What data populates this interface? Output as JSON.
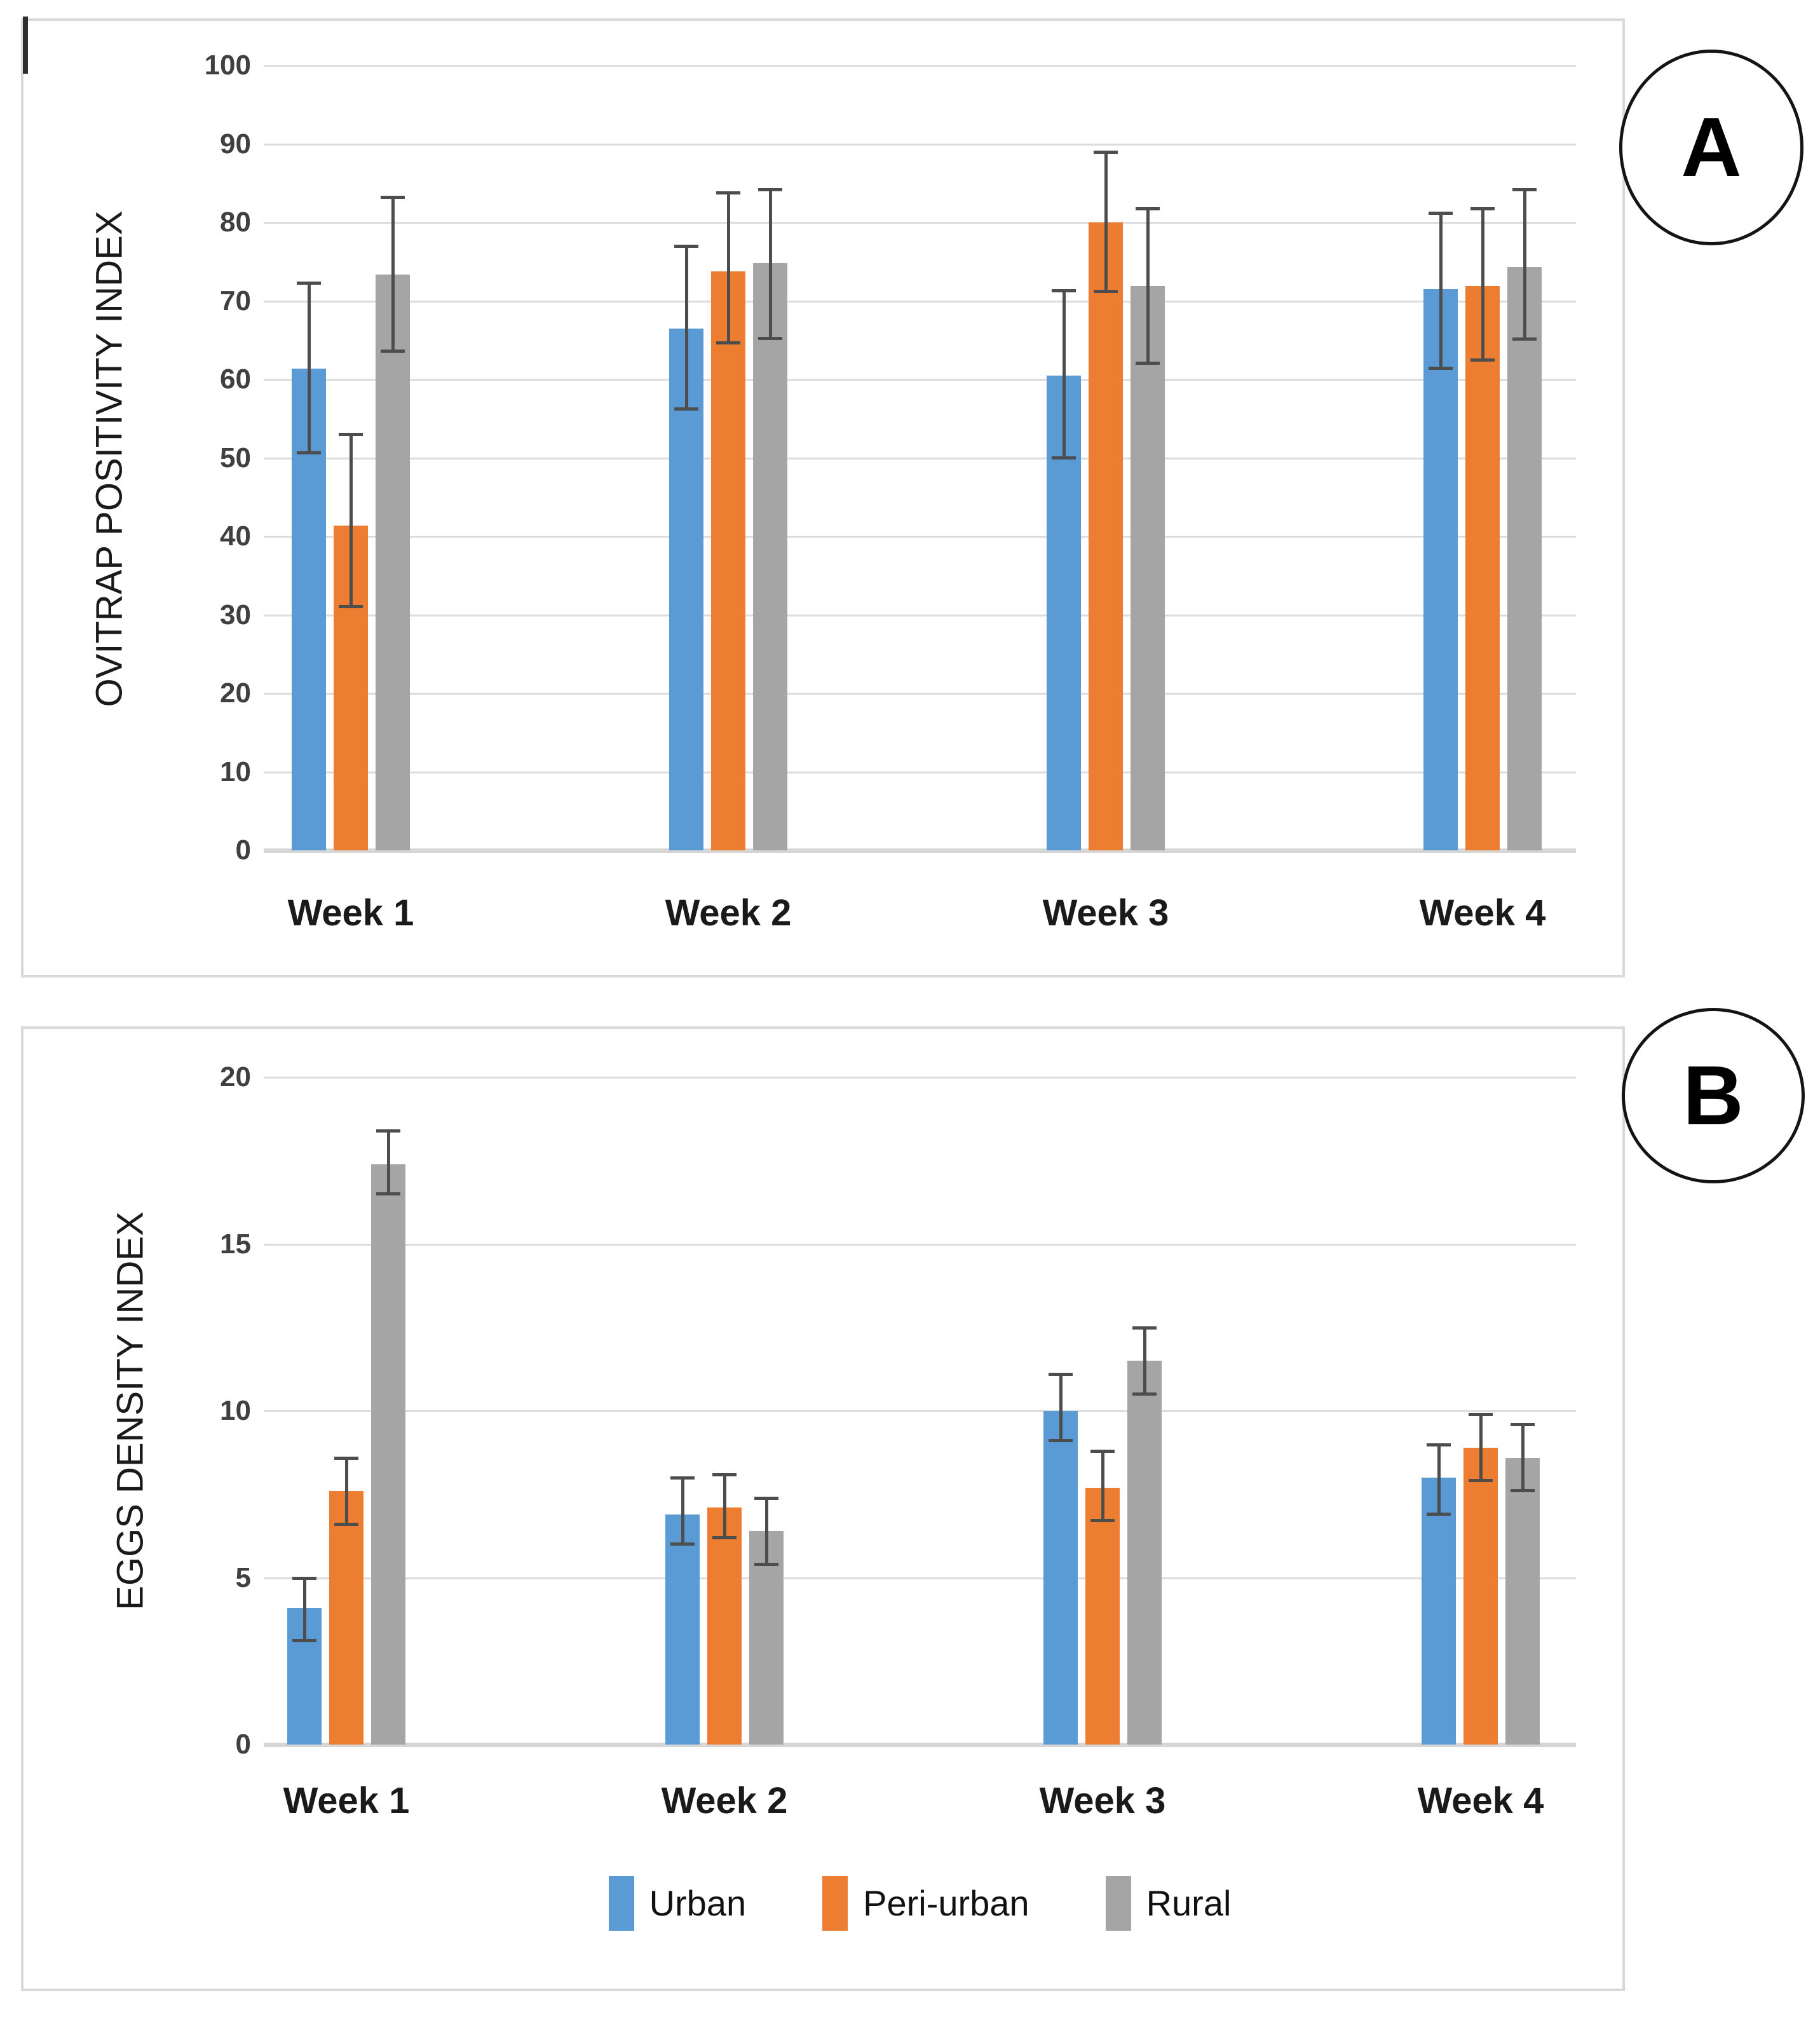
{
  "figure": {
    "panel_a_label": "A",
    "panel_b_label": "B",
    "colors": {
      "urban": "#5B9BD5",
      "peri_urban": "#ED7D31",
      "rural": "#A5A5A5",
      "error_bar": "#4d4d4d",
      "gridline": "#dcdcdc",
      "panel_border": "#d9d9d9"
    }
  },
  "chart_data": [
    {
      "type": "bar",
      "panel_label": "A",
      "title": "",
      "xlabel": "",
      "ylabel": "OVITRAP POSITIVITY INDEX",
      "categories": [
        "Week 1",
        "Week 2",
        "Week 3",
        "Week 4"
      ],
      "ylim": [
        0,
        100
      ],
      "ytick_step": 10,
      "yticks": [
        0,
        10,
        20,
        30,
        40,
        50,
        60,
        70,
        80,
        90,
        100
      ],
      "grid": true,
      "legend_position": "none",
      "error_bars": true,
      "series": [
        {
          "name": "Urban",
          "color": "#5B9BD5",
          "values": [
            61.4,
            66.5,
            60.5,
            71.5
          ],
          "err_low": [
            50.6,
            56.2,
            50.0,
            61.4
          ],
          "err_high": [
            72.3,
            77.0,
            71.3,
            81.2
          ]
        },
        {
          "name": "Peri-urban",
          "color": "#ED7D31",
          "values": [
            41.4,
            73.8,
            80.0,
            71.9
          ],
          "err_low": [
            31.0,
            64.6,
            71.2,
            62.4
          ],
          "err_high": [
            53.0,
            83.8,
            89.0,
            81.8
          ]
        },
        {
          "name": "Rural",
          "color": "#A5A5A5",
          "values": [
            73.4,
            74.8,
            71.9,
            74.3
          ],
          "err_low": [
            63.6,
            65.2,
            62.0,
            65.1
          ],
          "err_high": [
            83.2,
            84.2,
            81.8,
            84.2
          ]
        }
      ]
    },
    {
      "type": "bar",
      "panel_label": "B",
      "title": "",
      "xlabel": "",
      "ylabel": "EGGS DENSITY INDEX",
      "categories": [
        "Week 1",
        "Week 2",
        "Week 3",
        "Week 4"
      ],
      "ylim": [
        0,
        20
      ],
      "ytick_step": 5,
      "yticks": [
        0,
        5,
        10,
        15,
        20
      ],
      "grid": true,
      "legend_position": "bottom",
      "error_bars": true,
      "series": [
        {
          "name": "Urban",
          "color": "#5B9BD5",
          "values": [
            4.1,
            6.9,
            10.0,
            8.0
          ],
          "err_low": [
            3.1,
            6.0,
            9.1,
            6.9
          ],
          "err_high": [
            5.0,
            8.0,
            11.1,
            9.0
          ]
        },
        {
          "name": "Peri-urban",
          "color": "#ED7D31",
          "values": [
            7.6,
            7.1,
            7.7,
            8.9
          ],
          "err_low": [
            6.6,
            6.2,
            6.7,
            7.9
          ],
          "err_high": [
            8.6,
            8.1,
            8.8,
            9.9
          ]
        },
        {
          "name": "Rural",
          "color": "#A5A5A5",
          "values": [
            17.4,
            6.4,
            11.5,
            8.6
          ],
          "err_low": [
            16.5,
            5.4,
            10.5,
            7.6
          ],
          "err_high": [
            18.4,
            7.4,
            12.5,
            9.6
          ]
        }
      ]
    }
  ],
  "legend": {
    "items": [
      {
        "label": "Urban"
      },
      {
        "label": "Peri-urban"
      },
      {
        "label": "Rural"
      }
    ]
  }
}
